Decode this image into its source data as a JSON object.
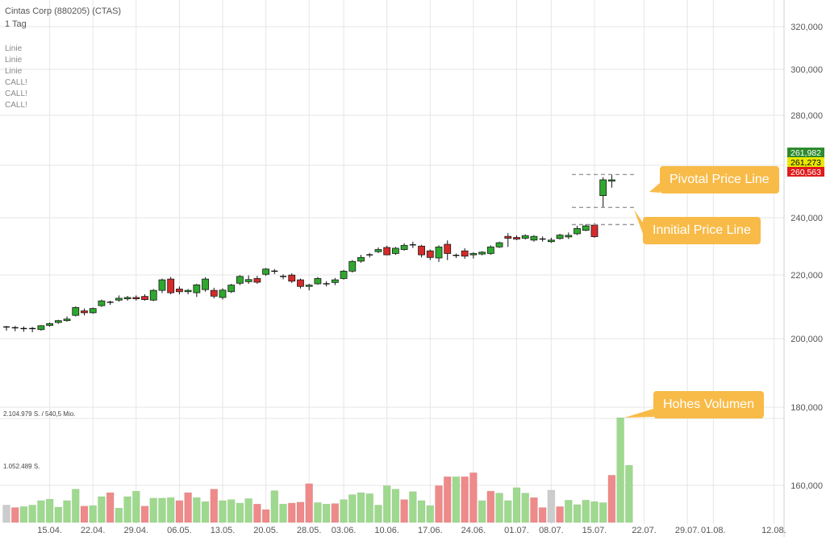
{
  "header": {
    "title": "Cintas Corp (880205) (CTAS)",
    "interval": "1 Tag"
  },
  "indicators": [
    "Linie",
    "Linie",
    "Linie",
    "CALL!",
    "CALL!",
    "CALL!"
  ],
  "volume_labels": {
    "top": "2.104.979 S. / 540,5 Mio.",
    "mid": "1.052.489 S."
  },
  "price_tags": [
    {
      "value": "261,982",
      "bg": "#2e8b2e",
      "fg": "#ffffff"
    },
    {
      "value": "261,273",
      "bg": "#e8e800",
      "fg": "#000000"
    },
    {
      "value": "260,563",
      "bg": "#e01b1b",
      "fg": "#ffffff"
    }
  ],
  "callouts": {
    "pivotal": "Pivotal Price Line",
    "initial": "Innitial Price Line",
    "volume": "Hohes Volumen"
  },
  "colors": {
    "up": "#2ea82e",
    "down": "#d62a2a",
    "vol_up": "#9fd98f",
    "vol_down": "#ef8a8a",
    "vol_neutral": "#cccccc",
    "callout": "#f8bb48",
    "grid": "#e6e6e6"
  },
  "chart_data": {
    "type": "candlestick",
    "y_ticks": [
      "320,000",
      "300,000",
      "280,000",
      "260,000",
      "240,000",
      "220,000",
      "200,000",
      "180,000",
      "160,000"
    ],
    "y_tick_values": [
      320,
      300,
      280,
      260,
      240,
      220,
      200,
      180,
      160
    ],
    "price_range": [
      200,
      320
    ],
    "x_ticks": [
      {
        "label": "15.04.",
        "index": 5
      },
      {
        "label": "22.04.",
        "index": 10
      },
      {
        "label": "29.04.",
        "index": 15
      },
      {
        "label": "06.05.",
        "index": 20
      },
      {
        "label": "13.05.",
        "index": 25
      },
      {
        "label": "20.05.",
        "index": 30
      },
      {
        "label": "28.05.",
        "index": 35
      },
      {
        "label": "03.06.",
        "index": 39
      },
      {
        "label": "10.06.",
        "index": 44
      },
      {
        "label": "17.06.",
        "index": 49
      },
      {
        "label": "24.06.",
        "index": 54
      },
      {
        "label": "01.07.",
        "index": 59
      },
      {
        "label": "08.07.",
        "index": 63
      },
      {
        "label": "15.07.",
        "index": 68
      },
      {
        "label": "22.07.",
        "index": 73
      },
      {
        "label": "29.07.",
        "index": 78
      },
      {
        "label": "01.08.",
        "index": 81
      },
      {
        "label": "12.08.",
        "index": 88
      }
    ],
    "candles": [
      {
        "o": 205.2,
        "h": 206.0,
        "l": 204.2,
        "c": 205.6
      },
      {
        "o": 205.3,
        "h": 206.0,
        "l": 204.0,
        "c": 205.0
      },
      {
        "o": 205.0,
        "h": 205.8,
        "l": 203.8,
        "c": 204.8
      },
      {
        "o": 204.8,
        "h": 205.6,
        "l": 203.6,
        "c": 205.0
      },
      {
        "o": 204.6,
        "h": 206.3,
        "l": 204.2,
        "c": 206.1
      },
      {
        "o": 206.2,
        "h": 207.3,
        "l": 205.7,
        "c": 206.9
      },
      {
        "o": 207.3,
        "h": 208.3,
        "l": 206.8,
        "c": 208.0
      },
      {
        "o": 208.0,
        "h": 209.6,
        "l": 207.6,
        "c": 208.6
      },
      {
        "o": 210.0,
        "h": 213.4,
        "l": 209.6,
        "c": 213.0
      },
      {
        "o": 211.7,
        "h": 212.6,
        "l": 210.0,
        "c": 211.0
      },
      {
        "o": 211.0,
        "h": 213.0,
        "l": 210.6,
        "c": 212.6
      },
      {
        "o": 213.7,
        "h": 216.0,
        "l": 213.2,
        "c": 215.5
      },
      {
        "o": 214.8,
        "h": 215.6,
        "l": 214.0,
        "c": 215.0
      },
      {
        "o": 215.8,
        "h": 217.6,
        "l": 215.2,
        "c": 216.5
      },
      {
        "o": 216.3,
        "h": 217.4,
        "l": 215.6,
        "c": 216.8
      },
      {
        "o": 216.8,
        "h": 217.6,
        "l": 215.6,
        "c": 216.3
      },
      {
        "o": 217.2,
        "h": 218.0,
        "l": 215.6,
        "c": 216.0
      },
      {
        "o": 215.8,
        "h": 220.0,
        "l": 215.4,
        "c": 219.5
      },
      {
        "o": 219.5,
        "h": 224.0,
        "l": 218.5,
        "c": 223.5
      },
      {
        "o": 223.8,
        "h": 224.6,
        "l": 218.0,
        "c": 218.6
      },
      {
        "o": 220.0,
        "h": 221.0,
        "l": 218.0,
        "c": 219.0
      },
      {
        "o": 219.0,
        "h": 220.0,
        "l": 218.0,
        "c": 219.5
      },
      {
        "o": 218.6,
        "h": 222.0,
        "l": 217.0,
        "c": 221.6
      },
      {
        "o": 219.8,
        "h": 224.5,
        "l": 219.0,
        "c": 223.8
      },
      {
        "o": 219.5,
        "h": 220.5,
        "l": 216.5,
        "c": 217.3
      },
      {
        "o": 216.8,
        "h": 220.3,
        "l": 216.0,
        "c": 219.6
      },
      {
        "o": 219.0,
        "h": 222.0,
        "l": 218.5,
        "c": 221.5
      },
      {
        "o": 222.2,
        "h": 225.3,
        "l": 221.5,
        "c": 224.8
      },
      {
        "o": 222.8,
        "h": 225.2,
        "l": 222.0,
        "c": 223.6
      },
      {
        "o": 224.0,
        "h": 225.0,
        "l": 222.0,
        "c": 222.6
      },
      {
        "o": 225.6,
        "h": 228.0,
        "l": 225.0,
        "c": 227.6
      },
      {
        "o": 226.5,
        "h": 227.6,
        "l": 225.7,
        "c": 226.8
      },
      {
        "o": 224.8,
        "h": 225.6,
        "l": 223.7,
        "c": 224.6
      },
      {
        "o": 225.3,
        "h": 226.0,
        "l": 222.3,
        "c": 223.0
      },
      {
        "o": 223.5,
        "h": 224.0,
        "l": 220.2,
        "c": 221.0
      },
      {
        "o": 221.0,
        "h": 222.0,
        "l": 219.5,
        "c": 221.5
      },
      {
        "o": 222.0,
        "h": 224.6,
        "l": 221.6,
        "c": 224.0
      },
      {
        "o": 222.0,
        "h": 223.0,
        "l": 221.0,
        "c": 222.0
      },
      {
        "o": 222.5,
        "h": 224.2,
        "l": 221.5,
        "c": 223.5
      },
      {
        "o": 224.0,
        "h": 227.3,
        "l": 223.6,
        "c": 226.8
      },
      {
        "o": 226.8,
        "h": 231.0,
        "l": 226.3,
        "c": 230.5
      },
      {
        "o": 230.6,
        "h": 233.0,
        "l": 230.0,
        "c": 232.0
      },
      {
        "o": 232.6,
        "h": 233.7,
        "l": 232.0,
        "c": 233.0
      },
      {
        "o": 234.2,
        "h": 235.8,
        "l": 233.7,
        "c": 235.0
      },
      {
        "o": 235.8,
        "h": 236.5,
        "l": 232.8,
        "c": 233.0
      },
      {
        "o": 233.5,
        "h": 236.0,
        "l": 233.0,
        "c": 235.5
      },
      {
        "o": 235.0,
        "h": 237.4,
        "l": 234.6,
        "c": 236.6
      },
      {
        "o": 236.6,
        "h": 238.0,
        "l": 235.6,
        "c": 236.8
      },
      {
        "o": 236.3,
        "h": 236.8,
        "l": 232.0,
        "c": 233.0
      },
      {
        "o": 234.5,
        "h": 235.0,
        "l": 231.0,
        "c": 232.0
      },
      {
        "o": 231.8,
        "h": 236.6,
        "l": 230.3,
        "c": 236.0
      },
      {
        "o": 237.0,
        "h": 238.5,
        "l": 231.0,
        "c": 233.5
      },
      {
        "o": 232.5,
        "h": 233.5,
        "l": 231.8,
        "c": 232.8
      },
      {
        "o": 234.5,
        "h": 235.5,
        "l": 231.5,
        "c": 232.5
      },
      {
        "o": 233.0,
        "h": 234.0,
        "l": 231.6,
        "c": 233.5
      },
      {
        "o": 233.3,
        "h": 234.4,
        "l": 232.8,
        "c": 234.0
      },
      {
        "o": 233.5,
        "h": 236.6,
        "l": 233.0,
        "c": 236.0
      },
      {
        "o": 236.0,
        "h": 238.0,
        "l": 235.6,
        "c": 237.6
      },
      {
        "o": 240.0,
        "h": 241.2,
        "l": 236.0,
        "c": 239.3
      },
      {
        "o": 239.6,
        "h": 240.4,
        "l": 238.6,
        "c": 239.0
      },
      {
        "o": 239.3,
        "h": 240.8,
        "l": 238.8,
        "c": 240.3
      },
      {
        "o": 238.6,
        "h": 240.5,
        "l": 238.0,
        "c": 240.0
      },
      {
        "o": 239.0,
        "h": 240.0,
        "l": 238.0,
        "c": 239.0
      },
      {
        "o": 238.0,
        "h": 239.5,
        "l": 237.5,
        "c": 238.6
      },
      {
        "o": 239.2,
        "h": 241.0,
        "l": 238.8,
        "c": 240.5
      },
      {
        "o": 239.8,
        "h": 241.5,
        "l": 239.0,
        "c": 240.4
      },
      {
        "o": 241.0,
        "h": 244.0,
        "l": 240.5,
        "c": 243.0
      },
      {
        "o": 242.3,
        "h": 244.6,
        "l": 242.0,
        "c": 244.0
      },
      {
        "o": 244.3,
        "h": 245.0,
        "l": 239.5,
        "c": 239.9
      },
      {
        "o": 255.5,
        "h": 262.5,
        "l": 251.0,
        "c": 261.5
      },
      {
        "o": 261.0,
        "h": 263.5,
        "l": 258.5,
        "c": 261.5
      }
    ],
    "volume": {
      "max": 2104979,
      "bars": [
        {
          "v": 350000,
          "dir": "neutral"
        },
        {
          "v": 300000,
          "dir": "down"
        },
        {
          "v": 320000,
          "dir": "up"
        },
        {
          "v": 350000,
          "dir": "up"
        },
        {
          "v": 440000,
          "dir": "up"
        },
        {
          "v": 470000,
          "dir": "up"
        },
        {
          "v": 310000,
          "dir": "up"
        },
        {
          "v": 440000,
          "dir": "up"
        },
        {
          "v": 670000,
          "dir": "up"
        },
        {
          "v": 330000,
          "dir": "down"
        },
        {
          "v": 340000,
          "dir": "up"
        },
        {
          "v": 520000,
          "dir": "up"
        },
        {
          "v": 600000,
          "dir": "down"
        },
        {
          "v": 290000,
          "dir": "up"
        },
        {
          "v": 520000,
          "dir": "up"
        },
        {
          "v": 630000,
          "dir": "up"
        },
        {
          "v": 330000,
          "dir": "down"
        },
        {
          "v": 490000,
          "dir": "up"
        },
        {
          "v": 490000,
          "dir": "up"
        },
        {
          "v": 500000,
          "dir": "up"
        },
        {
          "v": 440000,
          "dir": "down"
        },
        {
          "v": 600000,
          "dir": "down"
        },
        {
          "v": 500000,
          "dir": "up"
        },
        {
          "v": 420000,
          "dir": "up"
        },
        {
          "v": 670000,
          "dir": "down"
        },
        {
          "v": 440000,
          "dir": "up"
        },
        {
          "v": 460000,
          "dir": "up"
        },
        {
          "v": 390000,
          "dir": "up"
        },
        {
          "v": 480000,
          "dir": "up"
        },
        {
          "v": 370000,
          "dir": "down"
        },
        {
          "v": 260000,
          "dir": "down"
        },
        {
          "v": 640000,
          "dir": "up"
        },
        {
          "v": 370000,
          "dir": "up"
        },
        {
          "v": 390000,
          "dir": "down"
        },
        {
          "v": 410000,
          "dir": "down"
        },
        {
          "v": 780000,
          "dir": "down"
        },
        {
          "v": 400000,
          "dir": "up"
        },
        {
          "v": 370000,
          "dir": "up"
        },
        {
          "v": 380000,
          "dir": "down"
        },
        {
          "v": 460000,
          "dir": "up"
        },
        {
          "v": 560000,
          "dir": "up"
        },
        {
          "v": 600000,
          "dir": "up"
        },
        {
          "v": 580000,
          "dir": "up"
        },
        {
          "v": 350000,
          "dir": "up"
        },
        {
          "v": 740000,
          "dir": "up"
        },
        {
          "v": 670000,
          "dir": "up"
        },
        {
          "v": 460000,
          "dir": "down"
        },
        {
          "v": 620000,
          "dir": "up"
        },
        {
          "v": 440000,
          "dir": "up"
        },
        {
          "v": 340000,
          "dir": "up"
        },
        {
          "v": 740000,
          "dir": "down"
        },
        {
          "v": 920000,
          "dir": "down"
        },
        {
          "v": 920000,
          "dir": "up"
        },
        {
          "v": 920000,
          "dir": "down"
        },
        {
          "v": 1000000,
          "dir": "down"
        },
        {
          "v": 440000,
          "dir": "up"
        },
        {
          "v": 630000,
          "dir": "down"
        },
        {
          "v": 590000,
          "dir": "up"
        },
        {
          "v": 440000,
          "dir": "up"
        },
        {
          "v": 700000,
          "dir": "up"
        },
        {
          "v": 590000,
          "dir": "up"
        },
        {
          "v": 500000,
          "dir": "down"
        },
        {
          "v": 300000,
          "dir": "down"
        },
        {
          "v": 650000,
          "dir": "neutral"
        },
        {
          "v": 320000,
          "dir": "down"
        },
        {
          "v": 450000,
          "dir": "up"
        },
        {
          "v": 360000,
          "dir": "up"
        },
        {
          "v": 450000,
          "dir": "up"
        },
        {
          "v": 420000,
          "dir": "up"
        },
        {
          "v": 400000,
          "dir": "up"
        },
        {
          "v": 950000,
          "dir": "down"
        },
        {
          "v": 2104979,
          "dir": "up"
        },
        {
          "v": 1150000,
          "dir": "up"
        }
      ]
    },
    "price_lines": {
      "upper": 263.5,
      "pivotal": 251.0,
      "initial": 244.5
    },
    "grid": true
  }
}
